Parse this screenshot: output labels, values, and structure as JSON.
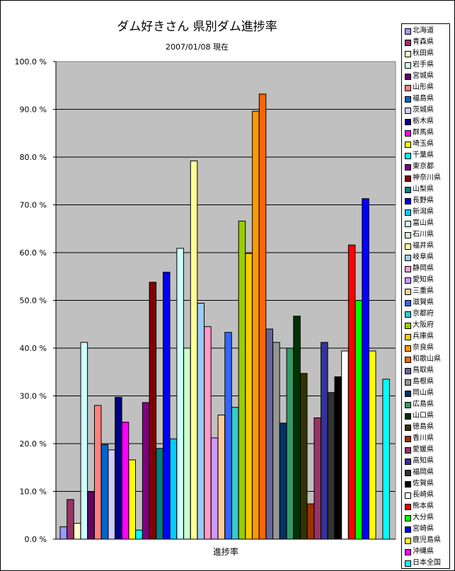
{
  "chart_data": {
    "type": "bar",
    "title": "ダム好きさん 県別ダム進捗率",
    "subtitle": "2007/01/08 現在",
    "xlabel": "進捗率",
    "ylabel": "",
    "ylim": [
      0,
      100
    ],
    "yticks": [
      "0.0 %",
      "10.0 %",
      "20.0 %",
      "30.0 %",
      "40.0 %",
      "50.0 %",
      "60.0 %",
      "70.0 %",
      "80.0 %",
      "90.0 %",
      "100.0 %"
    ],
    "grid": true,
    "legend_position": "right",
    "plot_background": "#c0c0c0",
    "series": [
      {
        "name": "北海道",
        "value": 2.6,
        "color": "#9999ff"
      },
      {
        "name": "青森県",
        "value": 8.3,
        "color": "#993366"
      },
      {
        "name": "秋田県",
        "value": 3.3,
        "color": "#ffffcc"
      },
      {
        "name": "岩手県",
        "value": 41.2,
        "color": "#ccffff"
      },
      {
        "name": "宮城県",
        "value": 9.9,
        "color": "#660066"
      },
      {
        "name": "山形県",
        "value": 28.0,
        "color": "#ff8080"
      },
      {
        "name": "福島県",
        "value": 19.8,
        "color": "#0066cc"
      },
      {
        "name": "茨城県",
        "value": 18.7,
        "color": "#ccccff"
      },
      {
        "name": "栃木県",
        "value": 29.7,
        "color": "#000080"
      },
      {
        "name": "群馬県",
        "value": 24.5,
        "color": "#ff00ff"
      },
      {
        "name": "埼玉県",
        "value": 16.6,
        "color": "#ffff00"
      },
      {
        "name": "千葉県",
        "value": 1.9,
        "color": "#00ffff"
      },
      {
        "name": "東京都",
        "value": 28.6,
        "color": "#800080"
      },
      {
        "name": "神奈川県",
        "value": 53.8,
        "color": "#800000"
      },
      {
        "name": "山梨県",
        "value": 19.0,
        "color": "#008080"
      },
      {
        "name": "長野県",
        "value": 55.9,
        "color": "#0000ff"
      },
      {
        "name": "新潟県",
        "value": 21.0,
        "color": "#00ccff"
      },
      {
        "name": "富山県",
        "value": 60.9,
        "color": "#ccffff"
      },
      {
        "name": "石川県",
        "value": 40.0,
        "color": "#ccffcc"
      },
      {
        "name": "福井県",
        "value": 79.2,
        "color": "#ffff99"
      },
      {
        "name": "岐阜県",
        "value": 49.4,
        "color": "#99ccff"
      },
      {
        "name": "静岡県",
        "value": 44.5,
        "color": "#ff99cc"
      },
      {
        "name": "愛知県",
        "value": 21.2,
        "color": "#cc99ff"
      },
      {
        "name": "三重県",
        "value": 26.0,
        "color": "#ffcc99"
      },
      {
        "name": "滋賀県",
        "value": 43.3,
        "color": "#3366ff"
      },
      {
        "name": "京都府",
        "value": 27.6,
        "color": "#33cccc"
      },
      {
        "name": "大阪府",
        "value": 66.6,
        "color": "#99cc00"
      },
      {
        "name": "兵庫県",
        "value": 59.8,
        "color": "#ffcc00"
      },
      {
        "name": "奈良県",
        "value": 89.6,
        "color": "#ff9900"
      },
      {
        "name": "和歌山県",
        "value": 93.2,
        "color": "#ff6600"
      },
      {
        "name": "鳥取県",
        "value": 44.0,
        "color": "#666699"
      },
      {
        "name": "島根県",
        "value": 41.2,
        "color": "#969696"
      },
      {
        "name": "岡山県",
        "value": 24.3,
        "color": "#003366"
      },
      {
        "name": "広島県",
        "value": 40.0,
        "color": "#339966"
      },
      {
        "name": "山口県",
        "value": 46.7,
        "color": "#003300"
      },
      {
        "name": "徳島県",
        "value": 34.7,
        "color": "#333300"
      },
      {
        "name": "香川県",
        "value": 7.4,
        "color": "#993300"
      },
      {
        "name": "愛媛県",
        "value": 25.4,
        "color": "#993366"
      },
      {
        "name": "高知県",
        "value": 41.2,
        "color": "#333399"
      },
      {
        "name": "福岡県",
        "value": 30.7,
        "color": "#333333"
      },
      {
        "name": "佐賀県",
        "value": 34.0,
        "color": "#000000"
      },
      {
        "name": "長崎県",
        "value": 39.4,
        "color": "#ffffff"
      },
      {
        "name": "熊本県",
        "value": 61.6,
        "color": "#ff0000"
      },
      {
        "name": "大分県",
        "value": 50.0,
        "color": "#00ff00"
      },
      {
        "name": "宮崎県",
        "value": 71.3,
        "color": "#0000ff"
      },
      {
        "name": "鹿児島県",
        "value": 39.4,
        "color": "#ffff00"
      },
      {
        "name": "沖縄県",
        "value": 0,
        "color": "#ff00ff"
      },
      {
        "name": "日本全国",
        "value": 33.5,
        "color": "#00ffff"
      }
    ]
  }
}
